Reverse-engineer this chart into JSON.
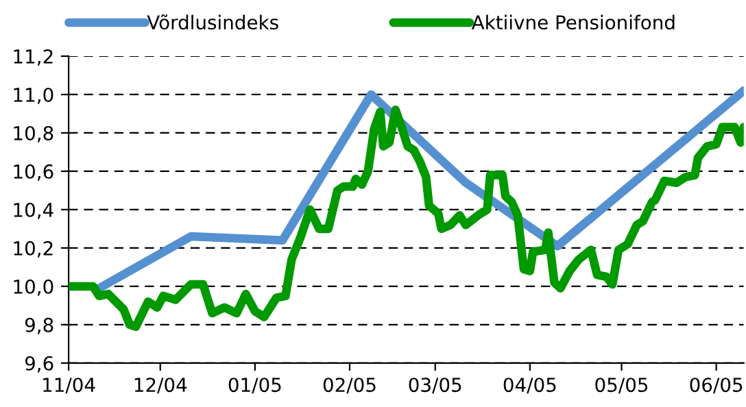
{
  "chart_data": {
    "type": "line",
    "legend": "top",
    "grid": "y",
    "line_style": "solid",
    "marker": "none",
    "xlim": [
      "2004-11-01",
      "2005-06-10"
    ],
    "xticks": [
      {
        "value": "2004-11-01",
        "label": "11/04"
      },
      {
        "value": "2004-12-01",
        "label": "12/04"
      },
      {
        "value": "2005-01-01",
        "label": "01/05"
      },
      {
        "value": "2005-02-01",
        "label": "02/05"
      },
      {
        "value": "2005-03-01",
        "label": "03/05"
      },
      {
        "value": "2005-04-01",
        "label": "04/05"
      },
      {
        "value": "2005-05-01",
        "label": "05/05"
      },
      {
        "value": "2005-06-01",
        "label": "06/05"
      }
    ],
    "ylim": [
      9.6,
      11.2
    ],
    "yticks": [
      {
        "value": 9.6,
        "label": "9,6"
      },
      {
        "value": 9.8,
        "label": "9,8"
      },
      {
        "value": 10.0,
        "label": "10,0"
      },
      {
        "value": 10.2,
        "label": "10,2"
      },
      {
        "value": 10.4,
        "label": "10,4"
      },
      {
        "value": 10.6,
        "label": "10,6"
      },
      {
        "value": 10.8,
        "label": "10,8"
      },
      {
        "value": 11.0,
        "label": "11,0"
      },
      {
        "value": 11.2,
        "label": "11,2"
      }
    ],
    "series": [
      {
        "name": "Võrdlusindeks",
        "color": "#5591d1",
        "x": [
          "2004-11-11",
          "2004-12-11",
          "2005-01-10",
          "2005-02-08",
          "2005-03-11",
          "2005-04-10",
          "2005-06-10"
        ],
        "values": [
          9.99,
          10.26,
          10.24,
          11.0,
          10.54,
          10.21,
          11.02
        ]
      },
      {
        "name": "Aktiivne Pensionifond",
        "color": "#009900",
        "x": [
          "2004-11-01",
          "2004-11-09",
          "2004-11-11",
          "2004-11-14",
          "2004-11-19",
          "2004-11-21",
          "2004-11-23",
          "2004-11-27",
          "2004-11-30",
          "2004-12-02",
          "2004-12-06",
          "2004-12-11",
          "2004-12-15",
          "2004-12-18",
          "2004-12-22",
          "2004-12-26",
          "2004-12-29",
          "2005-01-01",
          "2005-01-04",
          "2005-01-08",
          "2005-01-11",
          "2005-01-13",
          "2005-01-16",
          "2005-01-19",
          "2005-01-22",
          "2005-01-25",
          "2005-01-28",
          "2005-01-30",
          "2005-02-02",
          "2005-02-03",
          "2005-02-05",
          "2005-02-07",
          "2005-02-09",
          "2005-02-11",
          "2005-02-12",
          "2005-02-14",
          "2005-02-16",
          "2005-02-18",
          "2005-02-20",
          "2005-02-22",
          "2005-02-24",
          "2005-02-26",
          "2005-02-27",
          "2005-03-02",
          "2005-03-03",
          "2005-03-06",
          "2005-03-09",
          "2005-03-11",
          "2005-03-15",
          "2005-03-18",
          "2005-03-19",
          "2005-03-23",
          "2005-03-24",
          "2005-03-26",
          "2005-03-28",
          "2005-03-30",
          "2005-04-01",
          "2005-04-02",
          "2005-04-06",
          "2005-04-07",
          "2005-04-09",
          "2005-04-11",
          "2005-04-14",
          "2005-04-17",
          "2005-04-21",
          "2005-04-23",
          "2005-04-26",
          "2005-04-28",
          "2005-04-30",
          "2005-05-03",
          "2005-05-06",
          "2005-05-08",
          "2005-05-11",
          "2005-05-12",
          "2005-05-15",
          "2005-05-19",
          "2005-05-22",
          "2005-05-25",
          "2005-05-26",
          "2005-05-29",
          "2005-06-01",
          "2005-06-03",
          "2005-06-07",
          "2005-06-09",
          "2005-06-10"
        ],
        "values": [
          10.0,
          10.0,
          9.95,
          9.96,
          9.88,
          9.8,
          9.79,
          9.92,
          9.89,
          9.95,
          9.93,
          10.01,
          10.01,
          9.86,
          9.89,
          9.86,
          9.96,
          9.87,
          9.84,
          9.94,
          9.95,
          10.14,
          10.26,
          10.4,
          10.3,
          10.3,
          10.5,
          10.52,
          10.52,
          10.56,
          10.53,
          10.6,
          10.82,
          10.91,
          10.73,
          10.75,
          10.92,
          10.83,
          10.73,
          10.71,
          10.65,
          10.57,
          10.42,
          10.38,
          10.3,
          10.32,
          10.37,
          10.32,
          10.37,
          10.4,
          10.58,
          10.58,
          10.47,
          10.44,
          10.37,
          10.09,
          10.08,
          10.18,
          10.19,
          10.28,
          10.02,
          9.99,
          10.08,
          10.14,
          10.19,
          10.06,
          10.05,
          10.01,
          10.19,
          10.22,
          10.32,
          10.34,
          10.44,
          10.45,
          10.55,
          10.54,
          10.57,
          10.58,
          10.67,
          10.73,
          10.74,
          10.83,
          10.83,
          10.75,
          10.83
        ]
      }
    ]
  }
}
